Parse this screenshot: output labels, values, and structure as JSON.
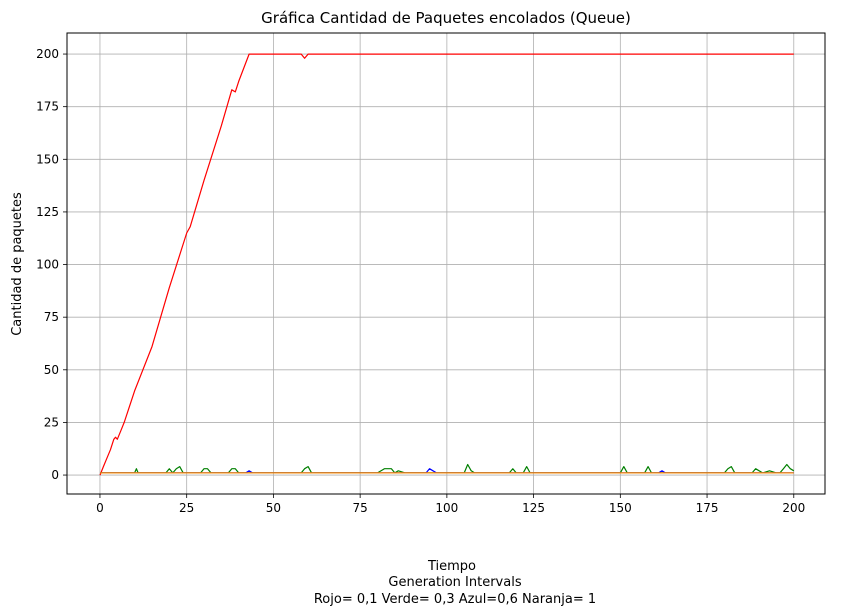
{
  "chart_data": {
    "type": "line",
    "title": "Gráfica Cantidad de Paquetes encolados (Queue)",
    "xlabel": "Tiempo",
    "xlabel_lines": [
      "Tiempo",
      "Generation Intervals",
      "Rojo= 0,1  Verde= 0,3  Azul=0,6  Naranja= 1"
    ],
    "ylabel": "Cantidad de paquetes",
    "xlim": [
      -9.5,
      209
    ],
    "ylim": [
      -9,
      210
    ],
    "xticks": [
      0,
      25,
      50,
      75,
      100,
      125,
      150,
      175,
      200
    ],
    "yticks": [
      0,
      25,
      50,
      75,
      100,
      125,
      150,
      175,
      200
    ],
    "grid": true,
    "series": [
      {
        "color": "#ff0000",
        "x": [
          0,
          1,
          2,
          3,
          4,
          4.5,
          5,
          6,
          7,
          10,
          15,
          20,
          25,
          26,
          30,
          35,
          38,
          39,
          40,
          43,
          50,
          55,
          58,
          59,
          60,
          70,
          100,
          150,
          200
        ],
        "values": [
          0,
          4,
          8,
          12,
          17,
          18,
          17,
          21,
          25,
          40,
          61,
          89,
          115,
          118,
          140,
          166,
          183,
          182,
          187,
          200,
          200,
          200,
          200,
          198,
          200,
          200,
          200,
          200,
          200
        ]
      },
      {
        "color": "#008000",
        "x": [
          0,
          10,
          10.5,
          11,
          19,
          20,
          21,
          22,
          23,
          24,
          29,
          30,
          31,
          32,
          37,
          38,
          39,
          40,
          48,
          55,
          58,
          59,
          60,
          61,
          80,
          82,
          84,
          85,
          86,
          88,
          95,
          105,
          106,
          107,
          108,
          118,
          119,
          120,
          122,
          123,
          124,
          150,
          151,
          152,
          157,
          158,
          159,
          180,
          181,
          182,
          183,
          188,
          189,
          191,
          193,
          195,
          196,
          197,
          198,
          199,
          200
        ],
        "values": [
          1,
          1,
          3,
          1,
          1,
          3,
          1,
          3,
          4,
          1,
          1,
          3,
          3,
          1,
          1,
          3,
          3,
          1,
          1,
          1,
          1,
          3,
          4,
          1,
          1,
          3,
          3,
          1,
          2,
          1,
          1,
          1,
          5,
          2,
          1,
          1,
          3,
          1,
          1,
          4,
          1,
          1,
          4,
          1,
          1,
          4,
          1,
          1,
          3,
          4,
          1,
          1,
          3,
          1,
          2,
          1,
          1,
          3,
          5,
          3,
          2
        ]
      },
      {
        "color": "#0000ff",
        "x": [
          0,
          42,
          43,
          44,
          94,
          95,
          96,
          97,
          161,
          162,
          163,
          199,
          200
        ],
        "values": [
          1,
          1,
          2,
          1,
          1,
          3,
          2,
          1,
          1,
          2,
          1,
          1,
          1
        ]
      },
      {
        "color": "#ff8c00",
        "x": [
          0,
          200
        ],
        "values": [
          1,
          1
        ]
      }
    ]
  }
}
